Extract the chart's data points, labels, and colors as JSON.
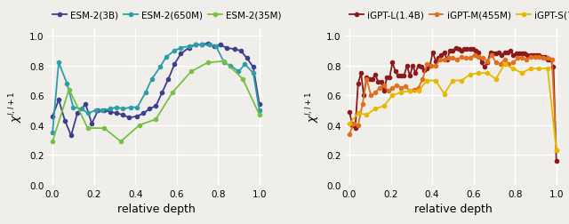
{
  "esm_3b_x": [
    0.0,
    0.03,
    0.06,
    0.09,
    0.12,
    0.16,
    0.19,
    0.22,
    0.25,
    0.28,
    0.31,
    0.34,
    0.37,
    0.41,
    0.44,
    0.47,
    0.5,
    0.53,
    0.56,
    0.59,
    0.62,
    0.66,
    0.69,
    0.72,
    0.75,
    0.78,
    0.81,
    0.84,
    0.88,
    0.91,
    0.94,
    0.97,
    1.0
  ],
  "esm_3b_y": [
    0.46,
    0.57,
    0.43,
    0.33,
    0.48,
    0.54,
    0.41,
    0.5,
    0.5,
    0.49,
    0.48,
    0.47,
    0.45,
    0.46,
    0.48,
    0.51,
    0.53,
    0.62,
    0.71,
    0.81,
    0.88,
    0.92,
    0.94,
    0.94,
    0.95,
    0.93,
    0.94,
    0.92,
    0.91,
    0.9,
    0.85,
    0.79,
    0.54
  ],
  "esm_650m_x": [
    0.0,
    0.03,
    0.07,
    0.1,
    0.14,
    0.17,
    0.21,
    0.24,
    0.28,
    0.31,
    0.34,
    0.38,
    0.41,
    0.45,
    0.48,
    0.52,
    0.55,
    0.59,
    0.62,
    0.66,
    0.69,
    0.72,
    0.76,
    0.79,
    0.83,
    0.86,
    0.9,
    0.93,
    0.97,
    1.0
  ],
  "esm_650m_y": [
    0.35,
    0.82,
    0.68,
    0.52,
    0.51,
    0.48,
    0.5,
    0.5,
    0.51,
    0.52,
    0.51,
    0.52,
    0.52,
    0.62,
    0.71,
    0.79,
    0.86,
    0.9,
    0.92,
    0.93,
    0.94,
    0.94,
    0.94,
    0.93,
    0.82,
    0.8,
    0.76,
    0.81,
    0.75,
    0.5
  ],
  "esm_35m_x": [
    0.0,
    0.08,
    0.17,
    0.25,
    0.33,
    0.42,
    0.5,
    0.58,
    0.67,
    0.75,
    0.83,
    0.92,
    1.0
  ],
  "esm_35m_y": [
    0.29,
    0.64,
    0.38,
    0.38,
    0.29,
    0.4,
    0.44,
    0.62,
    0.76,
    0.82,
    0.83,
    0.71,
    0.47
  ],
  "igpt_l_x": [
    0.0,
    0.014,
    0.028,
    0.042,
    0.056,
    0.069,
    0.083,
    0.097,
    0.111,
    0.125,
    0.139,
    0.153,
    0.167,
    0.181,
    0.194,
    0.208,
    0.222,
    0.236,
    0.25,
    0.264,
    0.278,
    0.292,
    0.306,
    0.319,
    0.333,
    0.347,
    0.361,
    0.375,
    0.389,
    0.403,
    0.417,
    0.431,
    0.444,
    0.458,
    0.472,
    0.486,
    0.5,
    0.514,
    0.528,
    0.542,
    0.556,
    0.569,
    0.583,
    0.597,
    0.611,
    0.625,
    0.639,
    0.653,
    0.667,
    0.681,
    0.694,
    0.708,
    0.722,
    0.736,
    0.75,
    0.764,
    0.778,
    0.792,
    0.806,
    0.819,
    0.833,
    0.847,
    0.861,
    0.875,
    0.889,
    0.903,
    0.917,
    0.931,
    0.944,
    0.958,
    0.972,
    0.986,
    1.0
  ],
  "igpt_l_y": [
    0.49,
    0.4,
    0.38,
    0.68,
    0.75,
    0.6,
    0.72,
    0.71,
    0.71,
    0.74,
    0.69,
    0.69,
    0.63,
    0.72,
    0.72,
    0.82,
    0.76,
    0.73,
    0.73,
    0.73,
    0.8,
    0.73,
    0.8,
    0.75,
    0.8,
    0.79,
    0.77,
    0.78,
    0.8,
    0.89,
    0.83,
    0.85,
    0.87,
    0.89,
    0.84,
    0.9,
    0.9,
    0.92,
    0.91,
    0.9,
    0.91,
    0.91,
    0.91,
    0.91,
    0.9,
    0.89,
    0.82,
    0.79,
    0.82,
    0.89,
    0.88,
    0.88,
    0.89,
    0.87,
    0.89,
    0.89,
    0.9,
    0.87,
    0.88,
    0.88,
    0.88,
    0.88,
    0.87,
    0.87,
    0.87,
    0.87,
    0.87,
    0.86,
    0.86,
    0.84,
    0.84,
    0.79,
    0.16
  ],
  "igpt_m_x": [
    0.0,
    0.021,
    0.042,
    0.063,
    0.083,
    0.104,
    0.125,
    0.146,
    0.167,
    0.188,
    0.208,
    0.229,
    0.25,
    0.271,
    0.292,
    0.313,
    0.333,
    0.354,
    0.375,
    0.396,
    0.417,
    0.438,
    0.458,
    0.479,
    0.5,
    0.521,
    0.542,
    0.563,
    0.583,
    0.604,
    0.625,
    0.646,
    0.667,
    0.688,
    0.708,
    0.729,
    0.75,
    0.771,
    0.792,
    0.813,
    0.833,
    0.854,
    0.875,
    0.896,
    0.917,
    0.938,
    0.958,
    0.979,
    1.0
  ],
  "igpt_m_y": [
    0.34,
    0.41,
    0.4,
    0.54,
    0.71,
    0.6,
    0.62,
    0.65,
    0.67,
    0.63,
    0.65,
    0.67,
    0.65,
    0.66,
    0.63,
    0.64,
    0.65,
    0.71,
    0.81,
    0.8,
    0.8,
    0.84,
    0.84,
    0.85,
    0.85,
    0.84,
    0.86,
    0.85,
    0.85,
    0.87,
    0.86,
    0.85,
    0.83,
    0.87,
    0.82,
    0.81,
    0.84,
    0.81,
    0.82,
    0.85,
    0.85,
    0.84,
    0.86,
    0.86,
    0.86,
    0.85,
    0.85,
    0.84,
    0.23
  ],
  "igpt_s_x": [
    0.0,
    0.042,
    0.083,
    0.125,
    0.167,
    0.208,
    0.25,
    0.292,
    0.333,
    0.375,
    0.417,
    0.458,
    0.5,
    0.542,
    0.583,
    0.625,
    0.667,
    0.708,
    0.75,
    0.792,
    0.833,
    0.875,
    0.917,
    0.958,
    1.0
  ],
  "igpt_s_y": [
    0.41,
    0.48,
    0.47,
    0.51,
    0.53,
    0.6,
    0.62,
    0.63,
    0.63,
    0.7,
    0.7,
    0.61,
    0.7,
    0.7,
    0.74,
    0.75,
    0.75,
    0.71,
    0.81,
    0.78,
    0.75,
    0.78,
    0.78,
    0.78,
    0.23
  ],
  "esm_3b_color": "#3b3f8c",
  "esm_650m_color": "#2d9da8",
  "esm_35m_color": "#7abf45",
  "igpt_l_color": "#8b1a1a",
  "igpt_m_color": "#e07020",
  "igpt_s_color": "#e8b800",
  "ylabel": "$\\chi^{l,l+1}$",
  "xlabel": "relative depth",
  "ylim": [
    0.0,
    1.05
  ],
  "xlim": [
    -0.02,
    1.02
  ],
  "yticks": [
    0.0,
    0.2,
    0.4,
    0.6,
    0.8,
    1.0
  ],
  "xticks": [
    0.0,
    0.2,
    0.4,
    0.6,
    0.8,
    1.0
  ],
  "marker": "o",
  "markersize": 3.0,
  "linewidth": 1.3,
  "bg_color": "#f0eeea",
  "grid_color": "#ffffff",
  "legend_fontsize": 7.5,
  "tick_fontsize": 7.5,
  "label_fontsize": 9.0
}
